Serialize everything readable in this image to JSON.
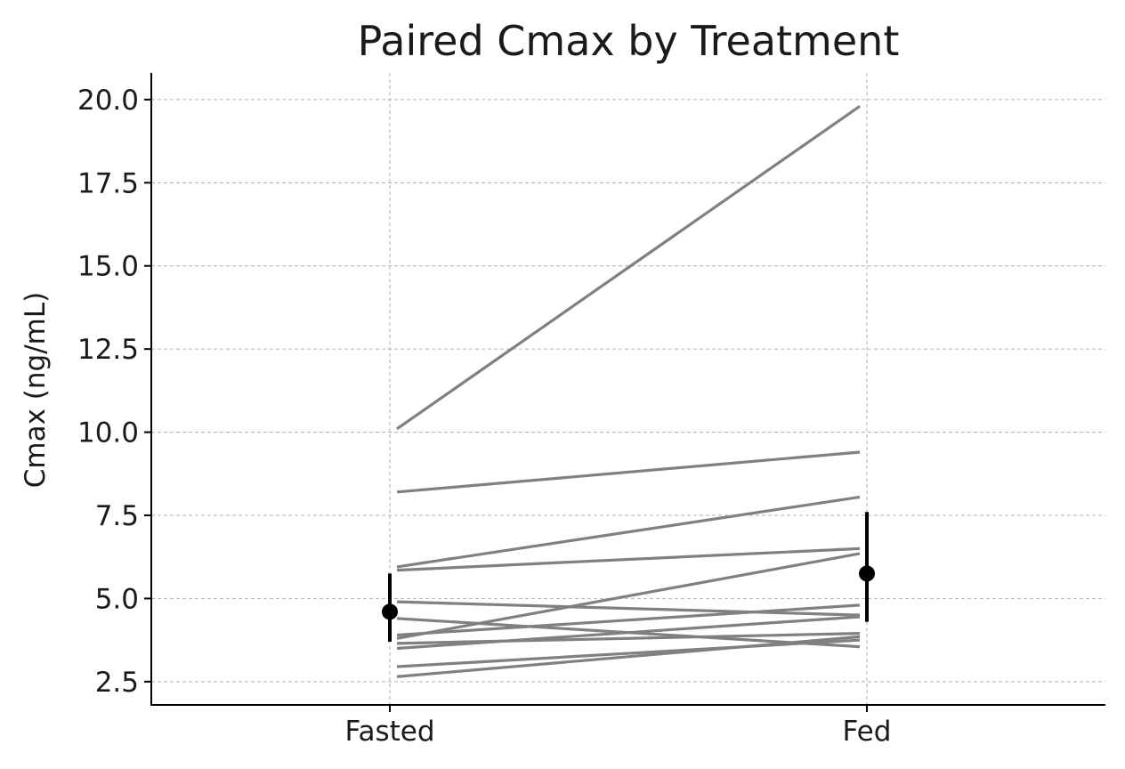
{
  "chart_data": {
    "type": "line",
    "title": "Paired Cmax by Treatment",
    "xlabel": "",
    "ylabel": "Cmax (ng/mL)",
    "categories": [
      "Fasted",
      "Fed"
    ],
    "ylim": [
      1.8,
      20.8
    ],
    "yticks": [
      "2.5",
      "5.0",
      "7.5",
      "10.0",
      "12.5",
      "15.0",
      "17.5",
      "20.0"
    ],
    "grid": true,
    "pairs": [
      {
        "fasted": 10.1,
        "fed": 19.8
      },
      {
        "fasted": 8.2,
        "fed": 9.4
      },
      {
        "fasted": 5.95,
        "fed": 8.05
      },
      {
        "fasted": 5.85,
        "fed": 6.5
      },
      {
        "fasted": 3.8,
        "fed": 6.35
      },
      {
        "fasted": 4.9,
        "fed": 4.5
      },
      {
        "fasted": 4.4,
        "fed": 3.55
      },
      {
        "fasted": 3.9,
        "fed": 4.8
      },
      {
        "fasted": 3.65,
        "fed": 3.95
      },
      {
        "fasted": 3.5,
        "fed": 4.45
      },
      {
        "fasted": 2.95,
        "fed": 3.75
      },
      {
        "fasted": 2.65,
        "fed": 3.85
      }
    ],
    "summary": [
      {
        "category": "Fasted",
        "mean": 4.6,
        "lower": 3.7,
        "upper": 5.75
      },
      {
        "category": "Fed",
        "mean": 5.75,
        "lower": 4.3,
        "upper": 7.6
      }
    ],
    "colors": {
      "pair_line": "#808080",
      "summary": "#000000",
      "grid": "#b0b0b0",
      "axis": "#000000"
    }
  }
}
